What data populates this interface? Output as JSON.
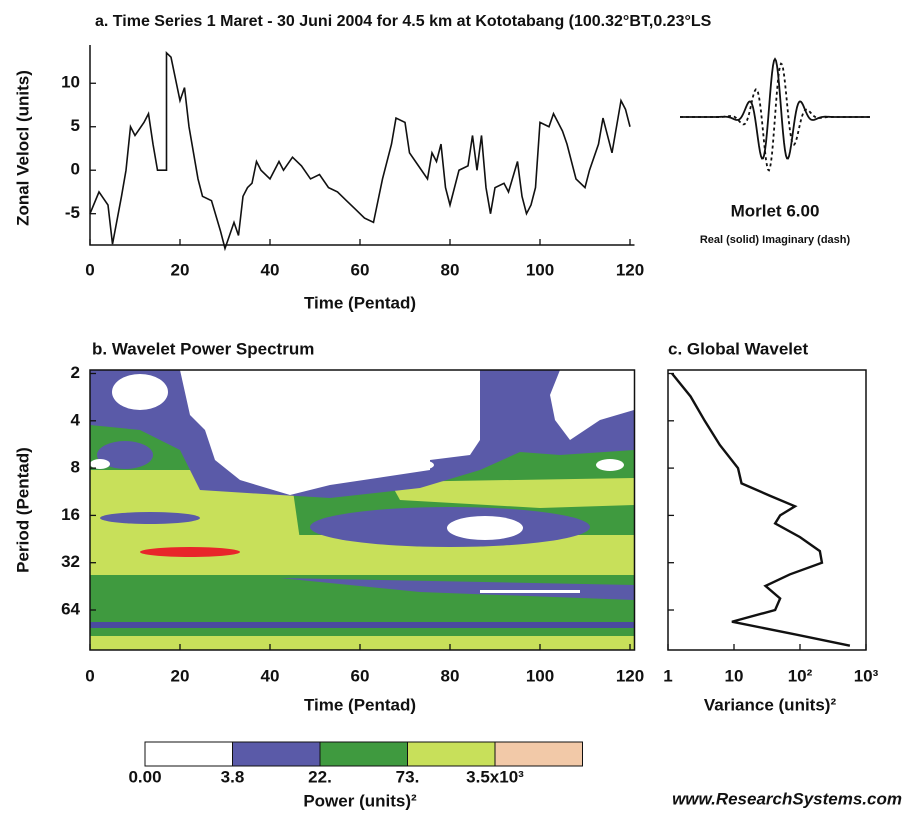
{
  "chart_data": [
    {
      "type": "line",
      "title": "a. Time Series 1 Maret - 30 Juni 2004 for 4.5 km at Kototabang (100.32°BT,0.23°LS",
      "xlabel": "Time (Pentad)",
      "ylabel": "Zonal Velocl (units)",
      "x": [
        0,
        2,
        4,
        5,
        7,
        8,
        9,
        10,
        12,
        13,
        14,
        15,
        17,
        17,
        18,
        20,
        21,
        22,
        24,
        25,
        27,
        29,
        30,
        32,
        33,
        34,
        35,
        36,
        37,
        38,
        40,
        42,
        43,
        45,
        47,
        49,
        51,
        53,
        55,
        57,
        59,
        61,
        63,
        65,
        67,
        68,
        70,
        71,
        73,
        75,
        76,
        77,
        78,
        79,
        80,
        82,
        84,
        85,
        86,
        87,
        88,
        89,
        90,
        92,
        93,
        95,
        96,
        97,
        98,
        99,
        100,
        102,
        103,
        104,
        105,
        106,
        108,
        110,
        111,
        113,
        114,
        116,
        117,
        118,
        119,
        120
      ],
      "values": [
        -5,
        -2.5,
        -4,
        -8.5,
        -3,
        0,
        5,
        4,
        5.5,
        6.5,
        3,
        0,
        0,
        13.5,
        13,
        8,
        9.5,
        5,
        -1,
        -3,
        -3.5,
        -7,
        -9,
        -6,
        -7.5,
        -3,
        -2,
        -1.5,
        1,
        0,
        -1,
        1,
        0,
        1.5,
        0.5,
        -1,
        -0.5,
        -2,
        -2.5,
        -3.5,
        -4.5,
        -5.5,
        -6,
        -1,
        3,
        6,
        5.5,
        2,
        0.5,
        -1,
        2,
        1,
        3,
        -2,
        -4,
        0,
        0.5,
        4,
        0,
        4,
        -2,
        -5,
        -2,
        -1.5,
        -2.5,
        1,
        -3,
        -5,
        -4,
        -2,
        5.5,
        5,
        6.5,
        5.5,
        4.5,
        3,
        -1,
        -2,
        0,
        3,
        6,
        2,
        5,
        8,
        7,
        5
      ],
      "color": "#111111",
      "xlim": [
        0,
        121
      ],
      "ylim": [
        -8.6,
        14.4
      ],
      "xticks": [
        0,
        20,
        40,
        60,
        80,
        100,
        120
      ],
      "yticks": [
        -5,
        0,
        5,
        10
      ],
      "wavelet_name": "Morlet 6.00",
      "wavelet_note": "Real (solid)  Imaginary (dash)"
    },
    {
      "type": "contour",
      "title": "b. Wavelet Power Spectrum",
      "xlabel": "Time (Pentad)",
      "ylabel": "Period (Pentad)",
      "xlim": [
        0,
        121
      ],
      "ylim": [
        1.9,
        115
      ],
      "y_scale": "log2",
      "y_inverted": true,
      "xticks": [
        0,
        20,
        40,
        60,
        80,
        100,
        120
      ],
      "yticks": [
        2,
        4,
        8,
        16,
        32,
        64
      ],
      "colorbar_labels": [
        "0.00",
        "3.8",
        "22.",
        "73.",
        "3.5x10³"
      ],
      "colorbar_colors": [
        "#ffffff",
        "#5a5aa8",
        "#3f9a3f",
        "#c8e05a",
        "#f2c9a8"
      ],
      "colorbar_title": "Power (units)²"
    },
    {
      "type": "line",
      "title": "c. Global Wavelet",
      "xlabel": "Variance (units)²",
      "periods": [
        2,
        2.8,
        4,
        5.7,
        8,
        10,
        12,
        14,
        16,
        18,
        22,
        27,
        32,
        38,
        45,
        54,
        64,
        76,
        90,
        108
      ],
      "values": [
        1.15,
        2.2,
        3.6,
        6.1,
        11.5,
        13,
        35,
        84,
        50,
        42,
        100,
        200,
        215,
        70,
        30,
        50,
        42,
        9.3,
        70,
        570
      ],
      "color": "#111111",
      "xlim": [
        1,
        1000
      ],
      "x_scale": "log",
      "xticks": [
        1,
        10,
        {
          "value": 100,
          "label": "10²"
        },
        {
          "value": 1000,
          "label": "10³"
        }
      ]
    },
    {
      "type": "text",
      "footer": "www.ResearchSystems.com"
    }
  ]
}
